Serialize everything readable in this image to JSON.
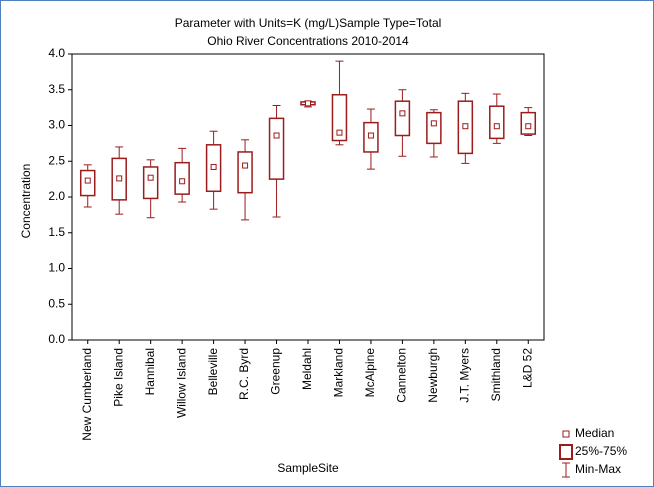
{
  "chart_data": {
    "type": "box",
    "title": [
      "Parameter with Units=K (mg/L)Sample Type=Total",
      "Ohio River Concentrations 2010-2014"
    ],
    "x_label": "SampleSite",
    "y_label": "Concentration",
    "categories": [
      "New Cumberland",
      "Pike Island",
      "Hannibal",
      "Willow Island",
      "Belleville",
      "R.C. Byrd",
      "Greenup",
      "Meldahl",
      "Markland",
      "McAlpine",
      "Cannelton",
      "Newburgh",
      "J.T. Myers",
      "Smithland",
      "L&D 52"
    ],
    "color": "#9b1c1c",
    "series": [
      {
        "name": "Median",
        "values": [
          2.23,
          2.26,
          2.27,
          2.22,
          2.42,
          2.44,
          2.86,
          3.31,
          2.9,
          2.86,
          3.17,
          3.03,
          2.99,
          2.99,
          2.99
        ]
      },
      {
        "name": "25%-75%",
        "low": [
          2.02,
          1.96,
          1.98,
          2.04,
          2.08,
          2.06,
          2.25,
          3.29,
          2.79,
          2.63,
          2.86,
          2.75,
          2.61,
          2.82,
          2.88
        ],
        "high": [
          2.37,
          2.54,
          2.42,
          2.48,
          2.73,
          2.63,
          3.1,
          3.33,
          3.43,
          3.04,
          3.34,
          3.18,
          3.34,
          3.27,
          3.18
        ]
      },
      {
        "name": "Min-Max",
        "low": [
          1.86,
          1.76,
          1.71,
          1.93,
          1.83,
          1.68,
          1.72,
          3.26,
          2.73,
          2.39,
          2.57,
          2.56,
          2.47,
          2.75,
          2.86
        ],
        "high": [
          2.45,
          2.7,
          2.52,
          2.68,
          2.92,
          2.8,
          3.28,
          3.34,
          3.9,
          3.23,
          3.5,
          3.22,
          3.45,
          3.44,
          3.25
        ]
      }
    ],
    "ylim": [
      0,
      4
    ],
    "yticks": [
      {
        "value": 0,
        "label": "0.0"
      },
      0.5,
      {
        "value": 1,
        "label": "1.0"
      },
      1.5,
      {
        "value": 2,
        "label": "2.0"
      },
      2.5,
      {
        "value": 3,
        "label": "3.0"
      },
      3.5,
      {
        "value": 4,
        "label": "4.0"
      }
    ]
  }
}
